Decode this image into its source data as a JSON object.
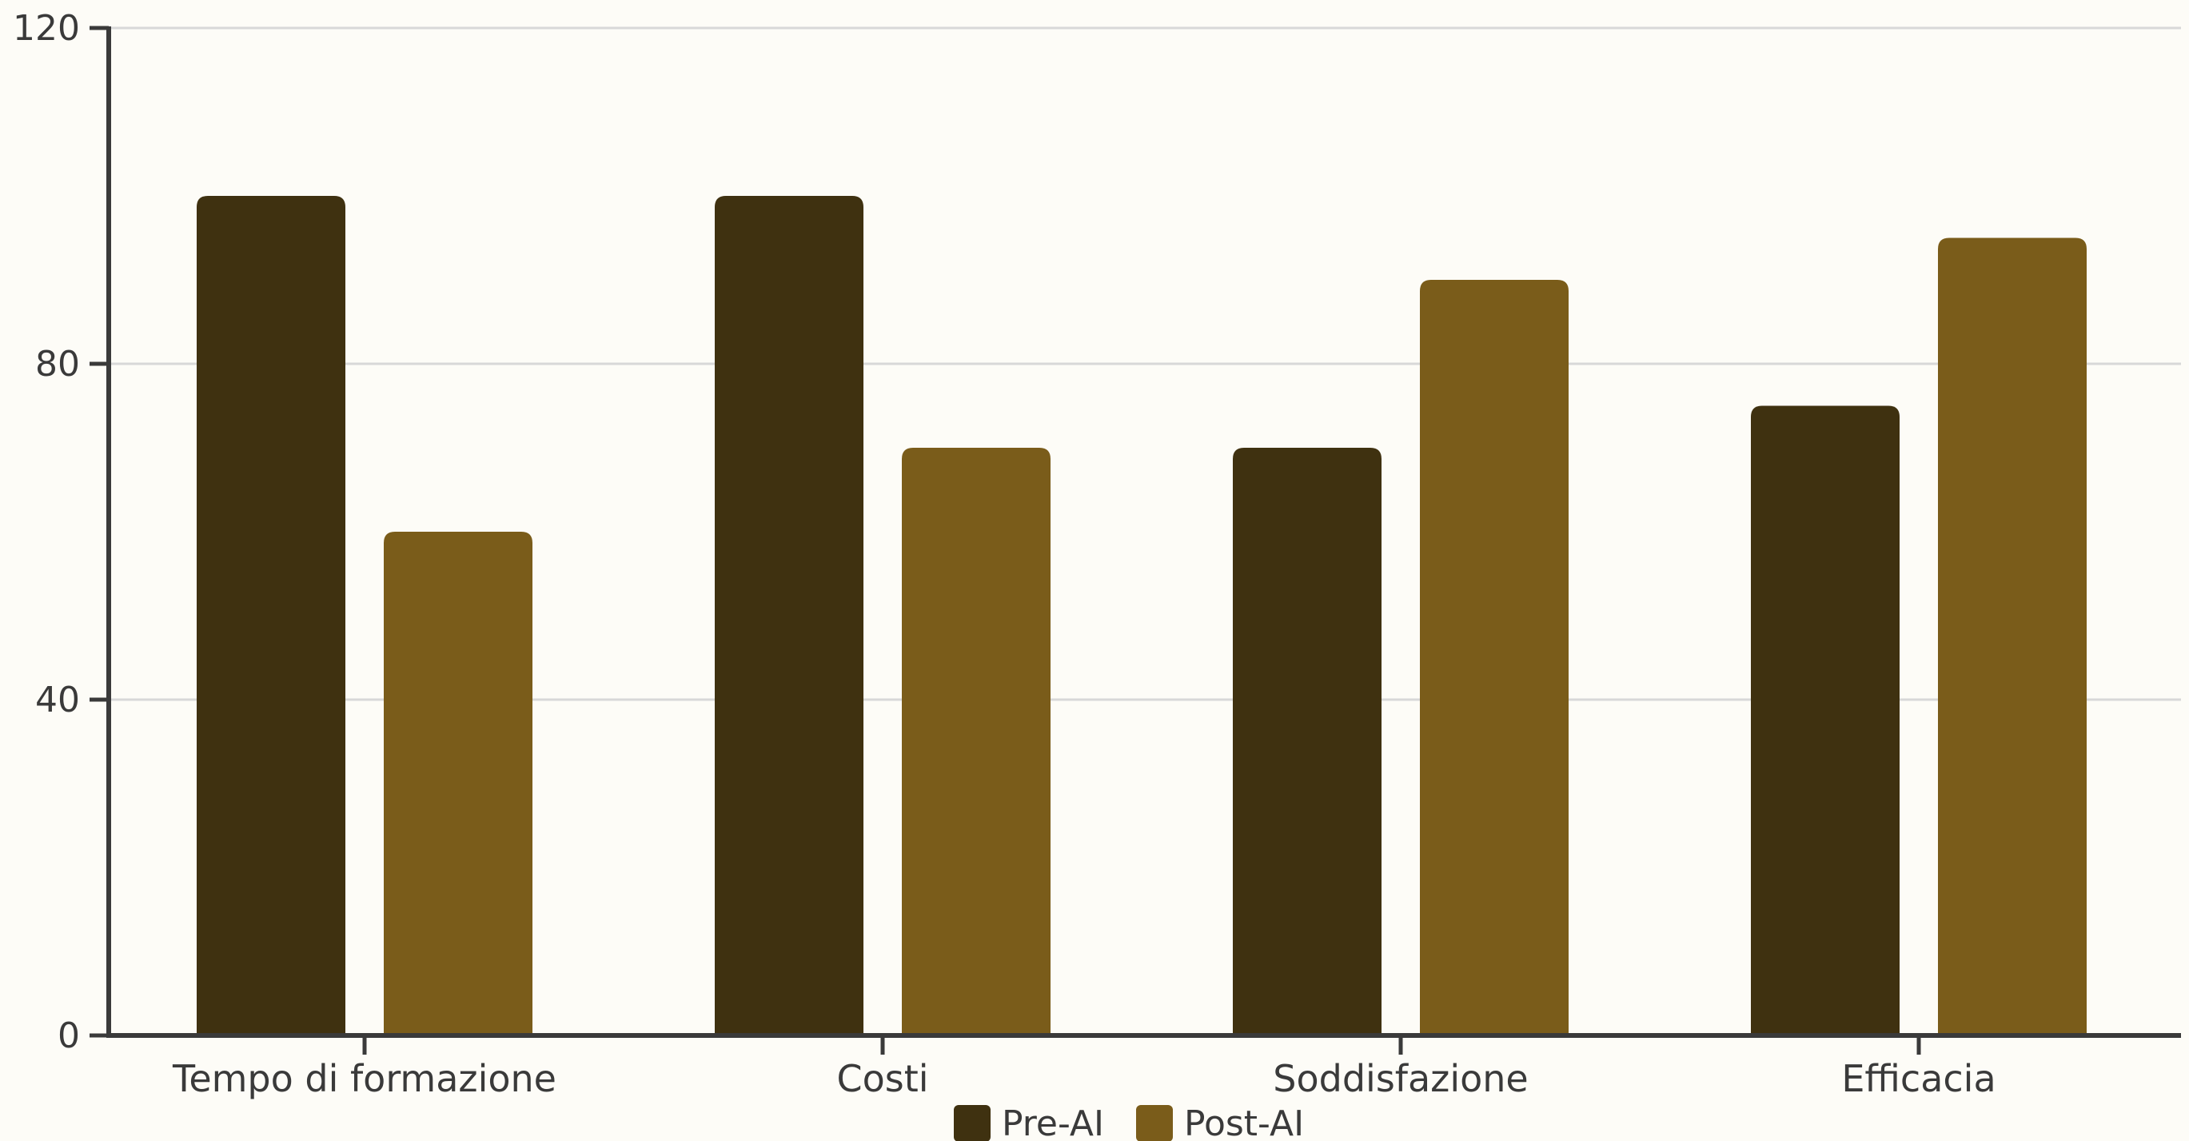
{
  "chart_data": {
    "type": "bar",
    "categories": [
      "Tempo di formazione",
      "Costi",
      "Soddisfazione",
      "Efficacia"
    ],
    "series": [
      {
        "name": "Pre-AI",
        "values": [
          100,
          100,
          70,
          75
        ],
        "color": "#3f3110"
      },
      {
        "name": "Post-AI",
        "values": [
          60,
          70,
          90,
          95
        ],
        "color": "#7a5c1a"
      }
    ],
    "ylim": [
      0,
      120
    ],
    "yticks": [
      0,
      40,
      80,
      120
    ],
    "grid": true,
    "legend_placement": "bottom-center",
    "colors": {
      "background": "#fdfcf7",
      "grid": "#d8d8d8",
      "axis": "#3a3a3a"
    }
  }
}
